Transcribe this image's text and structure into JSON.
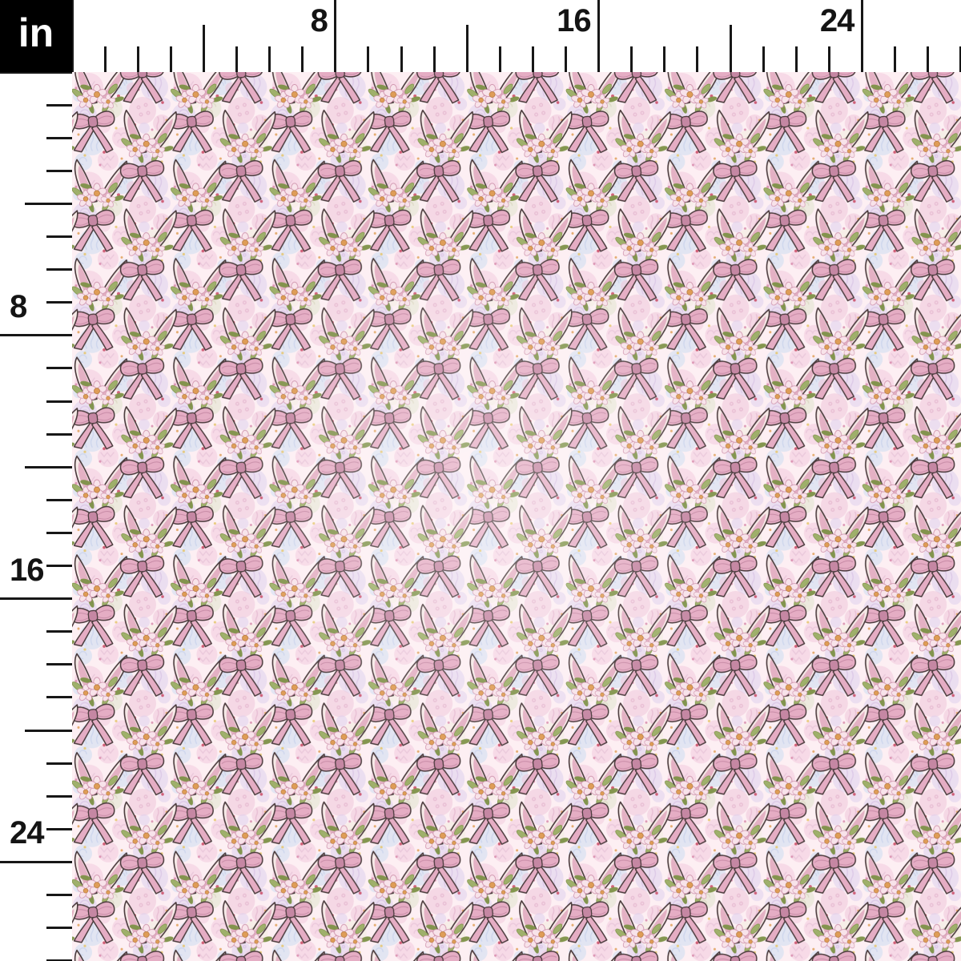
{
  "unit_box": {
    "label": "in"
  },
  "rulers": {
    "top": {
      "labels": [
        {
          "text": "8",
          "inches": 8
        },
        {
          "text": "16",
          "inches": 16
        },
        {
          "text": "24",
          "inches": 24
        }
      ]
    },
    "left": {
      "labels": [
        {
          "text": "8",
          "inches": 8
        },
        {
          "text": "16",
          "inches": 16
        },
        {
          "text": "24",
          "inches": 24
        }
      ]
    }
  },
  "fabric": {
    "motif": "bunny-ears-with-floral-crown-and-pink-bow",
    "background_motifs": [
      "easter-eggs",
      "confetti-dots"
    ],
    "palette": {
      "background": "#fdeff3",
      "outline": "#4a3a3c",
      "ear_cream": "#f6e9e7",
      "ear_inner_pink": "#e3abc0",
      "bow_pink": "#e5adc4",
      "bow_shade": "#c587a3",
      "leaf_green": "#9fb06b",
      "leaf_dark": "#7d9147",
      "petal_pink": "#f8e3ea",
      "petal_line": "#cf93ad",
      "flower_center": "#df9d57",
      "egg_pink": "#f2c9dc",
      "egg_lavender": "#ddcfed",
      "egg_blue": "#ccdcf1",
      "egg_sage": "#e0e3cc",
      "egg_cream": "#f2ecdf",
      "egg_rose": "#eec4d8",
      "egg_line_pink": "#dba7c6",
      "egg_line_lavender": "#bfa8dc",
      "egg_line_blue": "#a7c0e6",
      "egg_line_rose": "#d795b8",
      "egg_line_sage": "#c3c8a0",
      "dot_crimson": "#c94a64",
      "dot_orange": "#dfa05a",
      "dot_yellow": "#e5c66d",
      "dot_pink": "#d98cad"
    }
  }
}
